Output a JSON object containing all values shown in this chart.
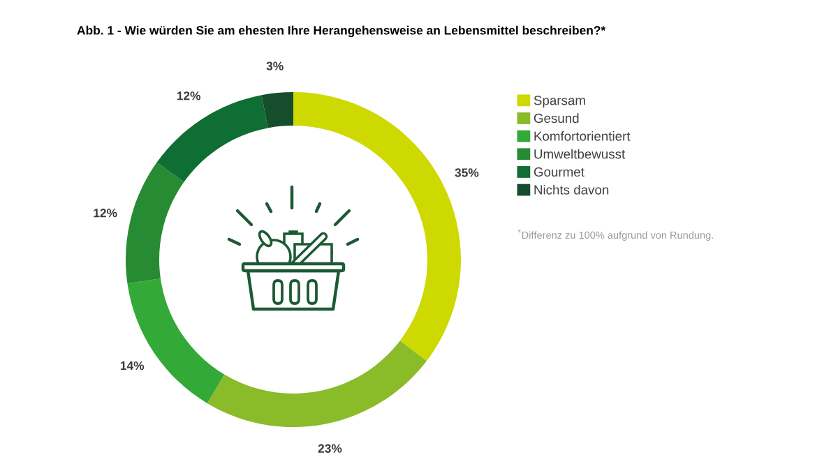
{
  "chart_data": {
    "type": "donut",
    "title": "Abb. 1 - Wie würden Sie am ehesten Ihre Herangehensweise an Lebensmittel beschreiben?*",
    "categories": [
      "Sparsam",
      "Gesund",
      "Komfortorientiert",
      "Umweltbewusst",
      "Gourmet",
      "Nichts davon"
    ],
    "values": [
      35,
      23,
      14,
      12,
      12,
      3
    ],
    "colors": [
      "#cdd900",
      "#8abb28",
      "#33a937",
      "#278b33",
      "#0e6e33",
      "#164d2c"
    ],
    "value_labels": [
      "35%",
      "23%",
      "14%",
      "12%",
      "12%",
      "3%"
    ],
    "legend": "right",
    "annotations": [
      "$^{*}$Differenz zu 100% aufgrund von Rundung."
    ]
  }
}
